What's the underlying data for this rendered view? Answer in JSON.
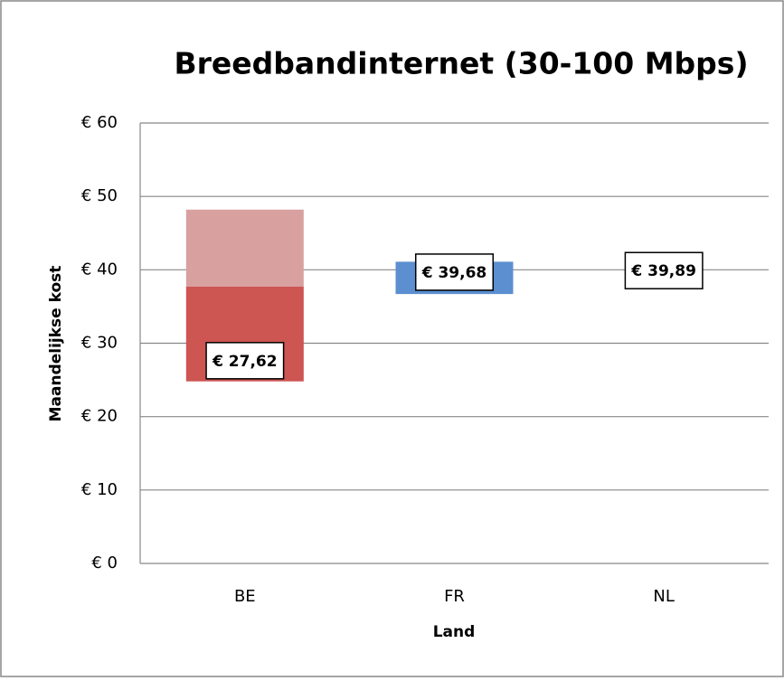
{
  "chart_data": {
    "type": "floating-bar",
    "title": "Breedbandinternet (30-100 Mbps)",
    "x_label": "Land",
    "y_label": "Maandelijkse kost",
    "categories": [
      "BE",
      "FR",
      "NL"
    ],
    "series": [
      {
        "color": "transparent",
        "values": [
          24.8,
          36.7,
          null
        ]
      },
      {
        "colors": [
          "#cd5552",
          "#5b8fd0",
          null
        ],
        "values": [
          12.9,
          4.4,
          null
        ]
      },
      {
        "colors": [
          "#d8a09f",
          null,
          null
        ],
        "values": [
          10.5,
          null,
          null
        ]
      }
    ],
    "labels": {
      "values": [
        27.62,
        39.68,
        39.89
      ],
      "value_labels": [
        "€ 27,62",
        "€ 39,68",
        "€ 39,89"
      ]
    },
    "ylim": [
      0,
      60
    ],
    "yticks": [
      {
        "value": 0,
        "label": "€ 0"
      },
      {
        "value": 10,
        "label": "€ 10"
      },
      {
        "value": 20,
        "label": "€ 20"
      },
      {
        "value": 30,
        "label": "€ 30"
      },
      {
        "value": 40,
        "label": "€ 40"
      },
      {
        "value": 50,
        "label": "€ 50"
      },
      {
        "value": 60,
        "label": "€ 60"
      }
    ],
    "grid": true
  }
}
